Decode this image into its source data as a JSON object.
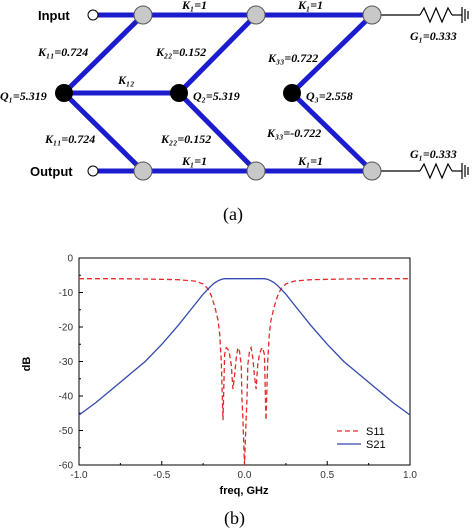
{
  "diagram": {
    "ports": {
      "input": "Input",
      "output": "Output"
    },
    "couplings": {
      "k1_top_a": "K₁=1",
      "k1_top_b": "K₁=1",
      "k1_bot_a": "K₁=1",
      "k1_bot_b": "K₁=1",
      "k11_top": "K₁₁=0.724",
      "k11_bot": "K₁₁=0.724",
      "k12": "K₁₂",
      "k22_top": "K₂₂=0.152",
      "k22_bot": "K₂₂=0.152",
      "k33_top": "K₃₃=0.722",
      "k33_bot": "K₃₃=-0.722"
    },
    "resonators": {
      "q1": "Q₁=5.319",
      "q2": "Q₂=5.319",
      "q3": "Q₃=2.558"
    },
    "loads": {
      "g1_top": "G₁=0.333",
      "g1_bot": "G₁=0.333"
    }
  },
  "captions": {
    "a": "(a)",
    "b": "(b)"
  },
  "colors": {
    "line": "#1c1ccf",
    "s11": "#e8282a",
    "s21": "#3348b0",
    "node_fill": "#c8c8c8",
    "node_dark": "#000000"
  },
  "chart_data": {
    "type": "line",
    "xlabel": "freq, GHz",
    "ylabel": "dB",
    "xlim": [
      -1.0,
      1.0
    ],
    "ylim": [
      -60,
      0
    ],
    "xticks": [
      "-1.0",
      "-0.5",
      "0.0",
      "0.5",
      "1.0"
    ],
    "yticks": [
      "0",
      "-10",
      "-20",
      "-30",
      "-40",
      "-50",
      "-60"
    ],
    "xtick_values": [
      -1.0,
      -0.5,
      0.0,
      0.5,
      1.0
    ],
    "ytick_values": [
      0,
      -10,
      -20,
      -30,
      -40,
      -50,
      -60
    ],
    "x_axis_reversed_labels": true,
    "legend_position": "bottom-right",
    "series": [
      {
        "name": "S11",
        "style": "dashed",
        "x": [
          -1.0,
          -0.8,
          -0.6,
          -0.4,
          -0.3,
          -0.25,
          -0.22,
          -0.2,
          -0.18,
          -0.16,
          -0.15,
          -0.14,
          -0.13,
          -0.12,
          -0.11,
          -0.1,
          -0.09,
          -0.08,
          -0.07,
          -0.06,
          -0.05,
          -0.04,
          -0.03,
          -0.02,
          -0.015,
          -0.01,
          0.0,
          0.01,
          0.015,
          0.02,
          0.03,
          0.04,
          0.05,
          0.06,
          0.07,
          0.08,
          0.09,
          0.1,
          0.11,
          0.12,
          0.13,
          0.14,
          0.15,
          0.16,
          0.18,
          0.2,
          0.22,
          0.25,
          0.3,
          0.4,
          0.6,
          0.8,
          1.0
        ],
        "y": [
          -6.0,
          -6.0,
          -6.1,
          -6.3,
          -6.7,
          -7.5,
          -9,
          -11,
          -14,
          -18,
          -22,
          -30,
          -47,
          -28,
          -26,
          -26.5,
          -28,
          -31,
          -38,
          -34,
          -29,
          -26,
          -27,
          -31,
          -41,
          -46,
          -60,
          -46,
          -41,
          -31,
          -27,
          -26,
          -29,
          -34,
          -38,
          -31,
          -28,
          -26.5,
          -26,
          -28,
          -47,
          -30,
          -22,
          -18,
          -14,
          -11,
          -9,
          -7.5,
          -6.7,
          -6.3,
          -6.1,
          -6.0,
          -6.0
        ]
      },
      {
        "name": "S21",
        "style": "solid",
        "x": [
          -1.0,
          -0.9,
          -0.8,
          -0.7,
          -0.6,
          -0.5,
          -0.4,
          -0.35,
          -0.3,
          -0.25,
          -0.2,
          -0.18,
          -0.16,
          -0.14,
          -0.12,
          -0.1,
          0.0,
          0.1,
          0.12,
          0.14,
          0.16,
          0.18,
          0.2,
          0.25,
          0.3,
          0.35,
          0.4,
          0.5,
          0.6,
          0.7,
          0.8,
          0.9,
          1.0
        ],
        "y": [
          -45.5,
          -42,
          -38,
          -34,
          -30,
          -25,
          -19.5,
          -16.5,
          -13.5,
          -10.5,
          -8,
          -7.2,
          -6.6,
          -6.2,
          -6.0,
          -6.0,
          -6.0,
          -6.0,
          -6.0,
          -6.2,
          -6.6,
          -7.2,
          -8,
          -10.5,
          -13.5,
          -16.5,
          -19.5,
          -25,
          -30,
          -34,
          -38,
          -42,
          -45.5
        ]
      }
    ]
  }
}
